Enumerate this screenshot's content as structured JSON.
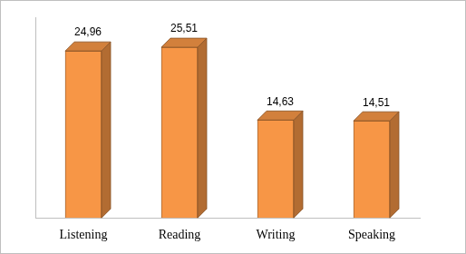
{
  "chart_data": {
    "type": "bar",
    "categories": [
      "Listening",
      "Reading",
      "Writing",
      "Speaking"
    ],
    "values": [
      24.96,
      25.51,
      14.63,
      14.51
    ],
    "value_labels": [
      "24,96",
      "25,51",
      "14,63",
      "14,51"
    ],
    "color": "#f79646",
    "ylim": [
      0,
      30
    ],
    "grid": false,
    "data_labels": true,
    "tick_labels": "x"
  }
}
